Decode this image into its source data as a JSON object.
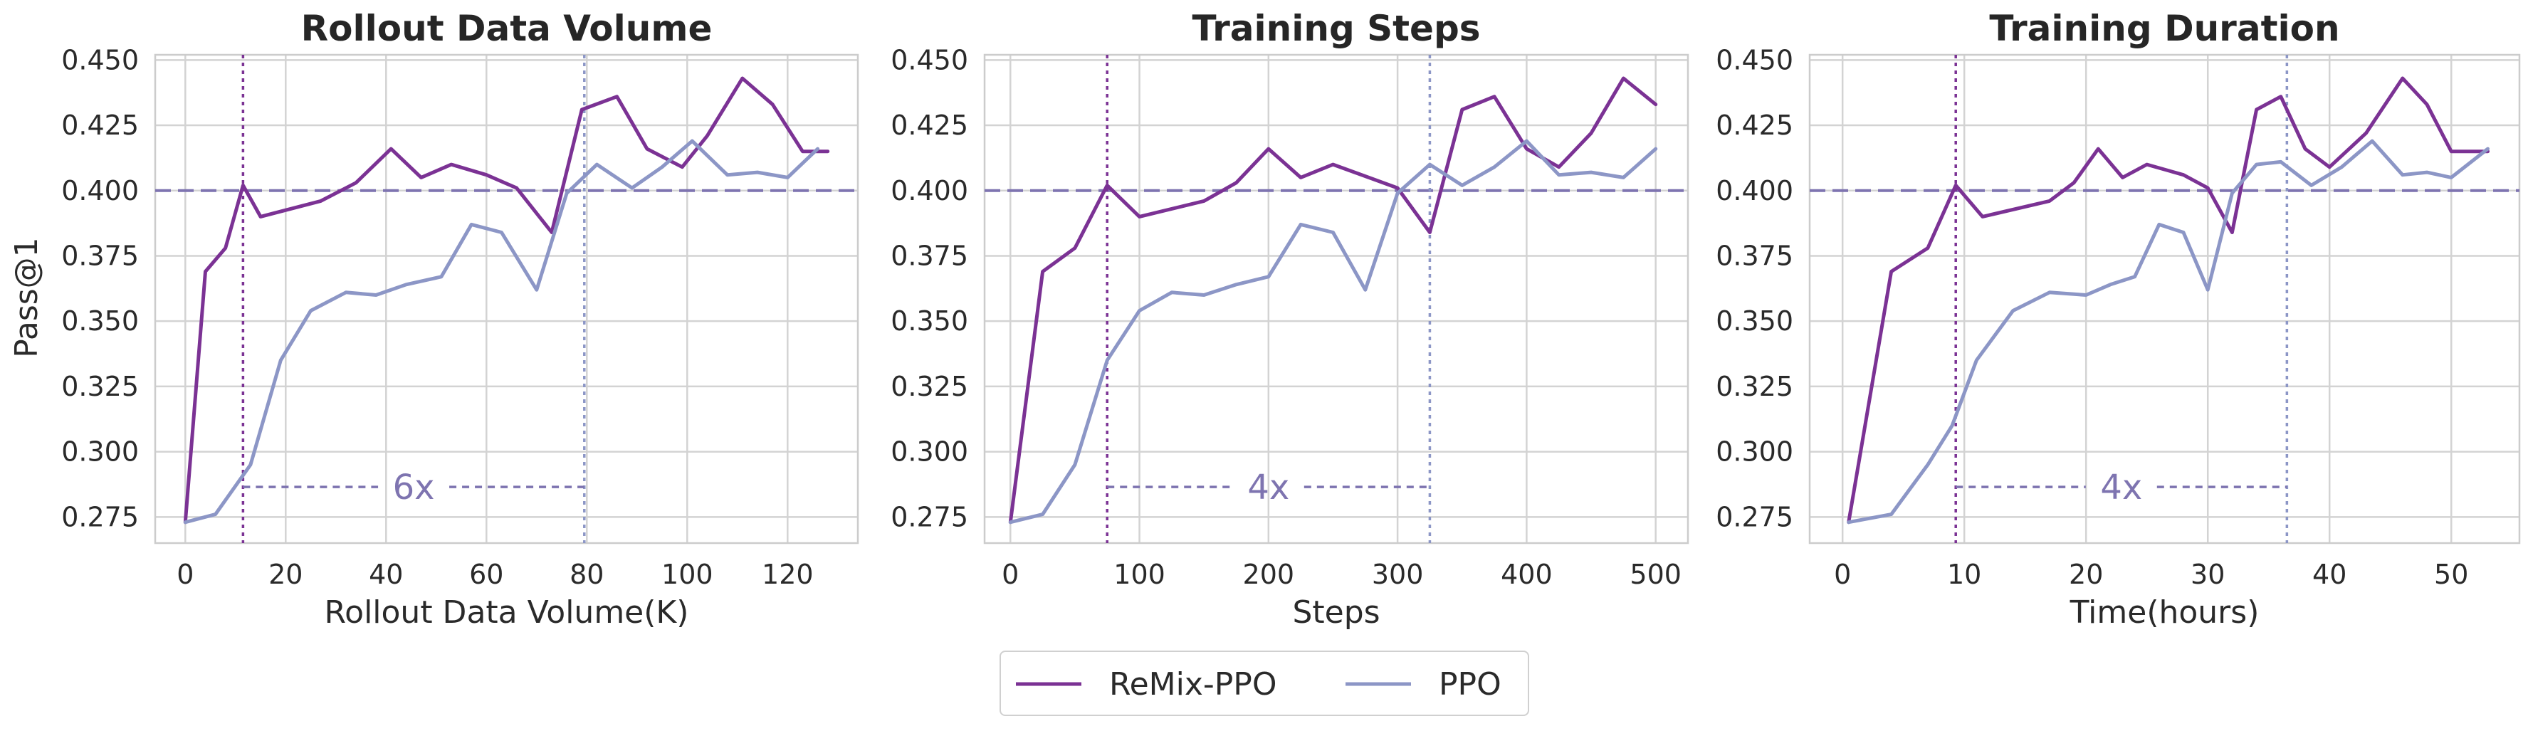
{
  "figure": {
    "ylabel": "Pass@1",
    "legend": {
      "placement": "bottom-center",
      "entries": [
        {
          "label": "ReMix-PPO",
          "color": "#7b3294"
        },
        {
          "label": "PPO",
          "color": "#8c96c6"
        }
      ]
    }
  },
  "colors": {
    "remix": "#7b3294",
    "ppo": "#8c96c6",
    "reference": "#7e74b0",
    "grid": "#d3d3d3",
    "text": "#2a2a2a",
    "title": "#262626"
  },
  "chart_data": [
    {
      "type": "line",
      "title": "Rollout Data Volume",
      "xlabel": "Rollout Data Volume(K)",
      "ylabel": "Pass@1",
      "xlim": [
        -6,
        134
      ],
      "ylim": [
        0.265,
        0.452
      ],
      "xticks": [
        0,
        20,
        40,
        60,
        80,
        100,
        120
      ],
      "yticks": [
        0.275,
        0.3,
        0.325,
        0.35,
        0.375,
        0.4,
        0.425,
        0.45
      ],
      "ytick_labels": [
        "0.275",
        "0.300",
        "0.325",
        "0.350",
        "0.375",
        "0.400",
        "0.425",
        "0.450"
      ],
      "grid": true,
      "hline": 0.4,
      "vlines": [
        11.5,
        79.5
      ],
      "annotation": {
        "text": "6x",
        "y": 0.2865,
        "from": 11.5,
        "to": 79.5
      },
      "series": [
        {
          "name": "ReMix-PPO",
          "x": [
            0,
            4,
            8,
            11.5,
            15,
            27,
            34,
            41,
            47,
            53,
            60,
            66,
            73,
            79,
            86,
            92,
            99,
            104,
            111,
            117,
            123,
            128
          ],
          "y": [
            0.273,
            0.369,
            0.378,
            0.402,
            0.39,
            0.396,
            0.403,
            0.416,
            0.405,
            0.41,
            0.406,
            0.401,
            0.384,
            0.431,
            0.436,
            0.416,
            0.409,
            0.421,
            0.443,
            0.433,
            0.415,
            0.415
          ]
        },
        {
          "name": "PPO",
          "x": [
            0,
            6,
            13,
            19,
            25,
            32,
            38,
            44,
            51,
            57,
            63,
            70,
            76,
            82,
            89,
            95,
            101,
            108,
            114,
            120,
            126
          ],
          "y": [
            0.273,
            0.276,
            0.295,
            0.335,
            0.354,
            0.361,
            0.36,
            0.364,
            0.367,
            0.387,
            0.384,
            0.362,
            0.399,
            0.41,
            0.401,
            0.409,
            0.419,
            0.406,
            0.407,
            0.405,
            0.416
          ]
        }
      ]
    },
    {
      "type": "line",
      "title": "Training Steps",
      "xlabel": "Steps",
      "ylabel": "",
      "xlim": [
        -20,
        525
      ],
      "ylim": [
        0.265,
        0.452
      ],
      "xticks": [
        0,
        100,
        200,
        300,
        400,
        500
      ],
      "yticks": [
        0.275,
        0.3,
        0.325,
        0.35,
        0.375,
        0.4,
        0.425,
        0.45
      ],
      "ytick_labels": [
        "0.275",
        "0.300",
        "0.325",
        "0.350",
        "0.375",
        "0.400",
        "0.425",
        "0.450"
      ],
      "grid": true,
      "hline": 0.4,
      "vlines": [
        75,
        325
      ],
      "annotation": {
        "text": "4x",
        "y": 0.2865,
        "from": 75,
        "to": 325
      },
      "series": [
        {
          "name": "ReMix-PPO",
          "x": [
            0,
            25,
            50,
            75,
            100,
            150,
            175,
            200,
            225,
            250,
            300,
            325,
            350,
            375,
            400,
            425,
            450,
            475,
            500
          ],
          "y": [
            0.273,
            0.369,
            0.378,
            0.402,
            0.39,
            0.396,
            0.403,
            0.416,
            0.405,
            0.41,
            0.401,
            0.384,
            0.431,
            0.436,
            0.416,
            0.409,
            0.422,
            0.443,
            0.433
          ]
        },
        {
          "name": "PPO",
          "x": [
            0,
            25,
            50,
            75,
            100,
            125,
            150,
            175,
            200,
            225,
            250,
            275,
            300,
            325,
            350,
            375,
            400,
            425,
            450,
            475,
            500
          ],
          "y": [
            0.273,
            0.276,
            0.295,
            0.335,
            0.354,
            0.361,
            0.36,
            0.364,
            0.367,
            0.387,
            0.384,
            0.362,
            0.399,
            0.41,
            0.402,
            0.409,
            0.419,
            0.406,
            0.407,
            0.405,
            0.416
          ]
        }
      ]
    },
    {
      "type": "line",
      "title": "Training Duration",
      "xlabel": "Time(hours)",
      "ylabel": "",
      "xlim": [
        -2.7,
        55.6
      ],
      "ylim": [
        0.265,
        0.452
      ],
      "xticks": [
        0,
        10,
        20,
        30,
        40,
        50
      ],
      "yticks": [
        0.275,
        0.3,
        0.325,
        0.35,
        0.375,
        0.4,
        0.425,
        0.45
      ],
      "ytick_labels": [
        "0.275",
        "0.300",
        "0.325",
        "0.350",
        "0.375",
        "0.400",
        "0.425",
        "0.450"
      ],
      "grid": true,
      "hline": 0.4,
      "vlines": [
        9.3,
        36.5
      ],
      "annotation": {
        "text": "4x",
        "y": 0.2865,
        "from": 9.3,
        "to": 36.5
      },
      "series": [
        {
          "name": "ReMix-PPO",
          "x": [
            0.5,
            4,
            7,
            9.3,
            11.5,
            17,
            19,
            21,
            23,
            25,
            28,
            30,
            32,
            34,
            36,
            38,
            40,
            43,
            46,
            48,
            50,
            53
          ],
          "y": [
            0.273,
            0.369,
            0.378,
            0.402,
            0.39,
            0.396,
            0.403,
            0.416,
            0.405,
            0.41,
            0.406,
            0.401,
            0.384,
            0.431,
            0.436,
            0.416,
            0.409,
            0.422,
            0.443,
            0.433,
            0.415,
            0.415
          ]
        },
        {
          "name": "PPO",
          "x": [
            0.5,
            4,
            7,
            9,
            11,
            14,
            17,
            20,
            22,
            24,
            26,
            28,
            30,
            32,
            34,
            36,
            38.5,
            41,
            43.5,
            46,
            48,
            50,
            53
          ],
          "y": [
            0.273,
            0.276,
            0.295,
            0.31,
            0.335,
            0.354,
            0.361,
            0.36,
            0.364,
            0.367,
            0.387,
            0.384,
            0.362,
            0.399,
            0.41,
            0.411,
            0.402,
            0.409,
            0.419,
            0.406,
            0.407,
            0.405,
            0.416
          ]
        }
      ]
    }
  ]
}
